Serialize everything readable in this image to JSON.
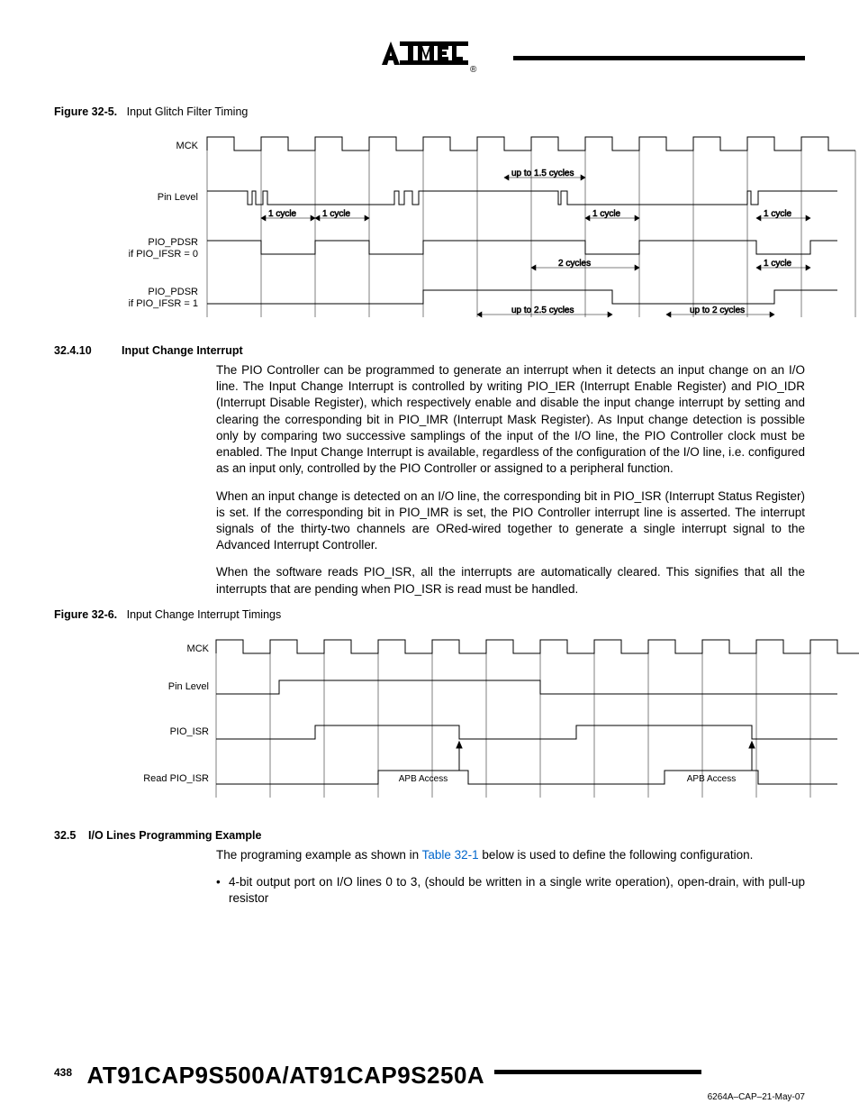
{
  "figure1": {
    "num": "Figure 32-5.",
    "title": "Input Glitch Filter Timing",
    "signals": [
      "MCK",
      "Pin Level",
      "PIO_PDSR",
      "PIO_PDSR"
    ],
    "sublabels": [
      "",
      "",
      "if PIO_IFSR = 0",
      "if PIO_IFSR = 1"
    ],
    "annotations": {
      "a1": "1 cycle",
      "a2": "1 cycle",
      "a3": "up to 1.5 cycles",
      "a4": "1 cycle",
      "a5": "1 cycle",
      "a6": "2 cycles",
      "a7": "1 cycle",
      "a8": "up to 2.5 cycles",
      "a9": "up to 2 cycles"
    }
  },
  "section1": {
    "num": "32.4.10",
    "title": "Input Change Interrupt",
    "p1": "The PIO Controller can be programmed to generate an interrupt when it detects an input change on an I/O line. The Input Change Interrupt is controlled by writing PIO_IER (Interrupt Enable Register) and PIO_IDR (Interrupt Disable Register), which respectively enable and disable the input change interrupt by setting and clearing the corresponding bit in PIO_IMR (Interrupt Mask Register). As Input change detection is possible only by comparing two successive samplings of the input of the I/O line, the PIO Controller clock must be enabled. The Input Change Interrupt is available, regardless of the configuration of the I/O line, i.e. configured as an input only, controlled by the PIO Controller or assigned to a peripheral function.",
    "p2": "When an input change is detected on an I/O line, the corresponding bit in PIO_ISR (Interrupt Status Register) is set. If the corresponding bit in PIO_IMR is set, the PIO Controller interrupt line is asserted. The interrupt signals of the thirty-two channels are ORed-wired together to generate a single interrupt signal to the Advanced Interrupt Controller.",
    "p3": "When the software reads PIO_ISR, all the interrupts are automatically cleared. This signifies that all the interrupts that are pending when PIO_ISR is read must be handled."
  },
  "figure2": {
    "num": "Figure 32-6.",
    "title": "Input Change Interrupt Timings",
    "signals": [
      "MCK",
      "Pin Level",
      "PIO_ISR",
      "Read PIO_ISR"
    ],
    "apb": "APB Access"
  },
  "section2": {
    "num": "32.5",
    "title": "I/O Lines Programming Example",
    "p1a": "The programing example as shown in ",
    "p1link": "Table 32-1",
    "p1b": " below is used to define the following configuration.",
    "bullet1": "4-bit output port on I/O lines 0 to 3, (should be written in a single write operation), open-drain, with pull-up resistor"
  },
  "footer": {
    "page": "438",
    "title": "AT91CAP9S500A/AT91CAP9S250A",
    "doc": "6264A–CAP–21-May-07"
  },
  "style": {
    "text_color": "#000000",
    "link_color": "#0066cc",
    "bg": "#ffffff",
    "stroke": "#000000",
    "label_fontsize": 11,
    "anno_fontsize": 10
  }
}
